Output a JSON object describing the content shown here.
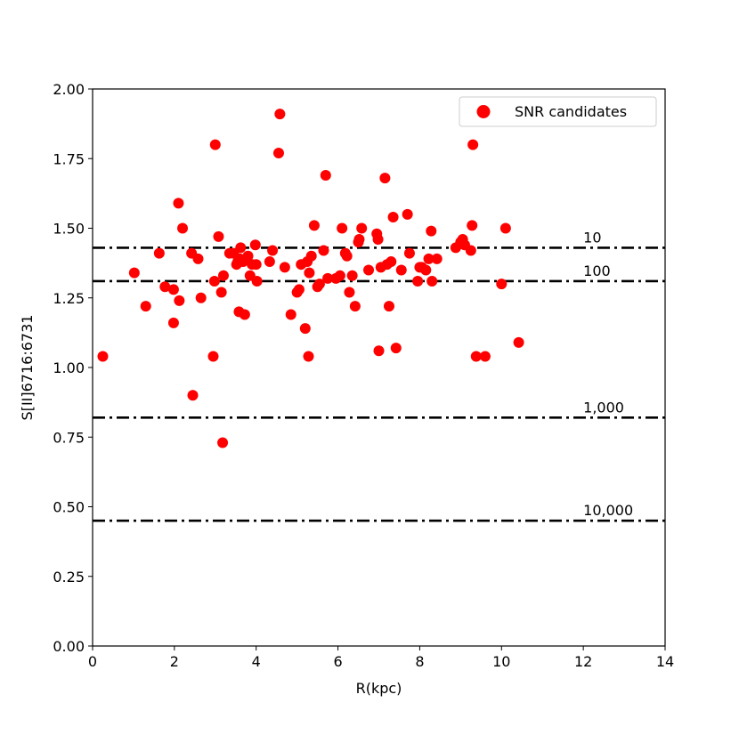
{
  "chart_data": {
    "type": "scatter",
    "title": "",
    "xlabel": "R(kpc)",
    "ylabel": "S[II]6716:6731",
    "xlim": [
      0,
      14
    ],
    "ylim": [
      0,
      2.0
    ],
    "xticks": [
      0,
      2,
      4,
      6,
      8,
      10,
      12,
      14
    ],
    "xtick_labels": [
      "0",
      "2",
      "4",
      "6",
      "8",
      "10",
      "12",
      "14"
    ],
    "yticks": [
      0.0,
      0.25,
      0.5,
      0.75,
      1.0,
      1.25,
      1.5,
      1.75,
      2.0
    ],
    "ytick_labels": [
      "0.00",
      "0.25",
      "0.50",
      "0.75",
      "1.00",
      "1.25",
      "1.50",
      "1.75",
      "2.00"
    ],
    "grid": false,
    "legend_position": "top-right",
    "series": [
      {
        "name": "SNR candidates",
        "color": "#ff0000",
        "marker": "circle",
        "points": [
          [
            0.25,
            1.04
          ],
          [
            1.02,
            1.34
          ],
          [
            1.3,
            1.22
          ],
          [
            1.63,
            1.41
          ],
          [
            1.77,
            1.29
          ],
          [
            1.98,
            1.28
          ],
          [
            1.98,
            1.16
          ],
          [
            2.1,
            1.59
          ],
          [
            2.12,
            1.24
          ],
          [
            2.2,
            1.5
          ],
          [
            2.42,
            1.41
          ],
          [
            2.45,
            0.9
          ],
          [
            2.58,
            1.39
          ],
          [
            2.65,
            1.25
          ],
          [
            2.95,
            1.04
          ],
          [
            2.98,
            1.31
          ],
          [
            3.0,
            1.8
          ],
          [
            3.08,
            1.47
          ],
          [
            3.15,
            1.27
          ],
          [
            3.18,
            0.73
          ],
          [
            3.2,
            1.33
          ],
          [
            3.35,
            1.41
          ],
          [
            3.45,
            1.41
          ],
          [
            3.52,
            1.37
          ],
          [
            3.55,
            1.38
          ],
          [
            3.58,
            1.2
          ],
          [
            3.6,
            1.39
          ],
          [
            3.62,
            1.43
          ],
          [
            3.68,
            1.38
          ],
          [
            3.72,
            1.19
          ],
          [
            3.8,
            1.4
          ],
          [
            3.85,
            1.33
          ],
          [
            3.9,
            1.37
          ],
          [
            3.98,
            1.44
          ],
          [
            4.0,
            1.37
          ],
          [
            4.02,
            1.31
          ],
          [
            4.33,
            1.38
          ],
          [
            4.4,
            1.42
          ],
          [
            4.55,
            1.77
          ],
          [
            4.58,
            1.91
          ],
          [
            4.7,
            1.36
          ],
          [
            4.85,
            1.19
          ],
          [
            5.0,
            1.27
          ],
          [
            5.05,
            1.28
          ],
          [
            5.1,
            1.37
          ],
          [
            5.2,
            1.14
          ],
          [
            5.25,
            1.38
          ],
          [
            5.28,
            1.04
          ],
          [
            5.3,
            1.34
          ],
          [
            5.35,
            1.4
          ],
          [
            5.42,
            1.51
          ],
          [
            5.5,
            1.29
          ],
          [
            5.55,
            1.3
          ],
          [
            5.65,
            1.42
          ],
          [
            5.7,
            1.69
          ],
          [
            5.75,
            1.32
          ],
          [
            5.95,
            1.32
          ],
          [
            6.05,
            1.33
          ],
          [
            6.1,
            1.5
          ],
          [
            6.18,
            1.41
          ],
          [
            6.22,
            1.4
          ],
          [
            6.28,
            1.27
          ],
          [
            6.35,
            1.33
          ],
          [
            6.42,
            1.22
          ],
          [
            6.5,
            1.45
          ],
          [
            6.52,
            1.46
          ],
          [
            6.58,
            1.5
          ],
          [
            6.75,
            1.35
          ],
          [
            6.95,
            1.48
          ],
          [
            6.98,
            1.46
          ],
          [
            7.0,
            1.06
          ],
          [
            7.05,
            1.36
          ],
          [
            7.15,
            1.68
          ],
          [
            7.2,
            1.37
          ],
          [
            7.25,
            1.22
          ],
          [
            7.3,
            1.38
          ],
          [
            7.35,
            1.54
          ],
          [
            7.42,
            1.07
          ],
          [
            7.55,
            1.35
          ],
          [
            7.7,
            1.55
          ],
          [
            7.75,
            1.41
          ],
          [
            7.95,
            1.31
          ],
          [
            8.0,
            1.36
          ],
          [
            8.05,
            1.36
          ],
          [
            8.15,
            1.35
          ],
          [
            8.22,
            1.39
          ],
          [
            8.28,
            1.49
          ],
          [
            8.3,
            1.31
          ],
          [
            8.42,
            1.39
          ],
          [
            8.88,
            1.43
          ],
          [
            9.0,
            1.45
          ],
          [
            9.05,
            1.46
          ],
          [
            9.1,
            1.44
          ],
          [
            9.25,
            1.42
          ],
          [
            9.28,
            1.51
          ],
          [
            9.3,
            1.8
          ],
          [
            9.38,
            1.04
          ],
          [
            9.6,
            1.04
          ],
          [
            10.0,
            1.3
          ],
          [
            10.1,
            1.5
          ],
          [
            10.42,
            1.09
          ]
        ]
      }
    ],
    "reference_lines": [
      {
        "label": "10",
        "y": 1.43
      },
      {
        "label": "100",
        "y": 1.31
      },
      {
        "label": "1,000",
        "y": 0.82
      },
      {
        "label": "10,000",
        "y": 0.45
      }
    ]
  }
}
